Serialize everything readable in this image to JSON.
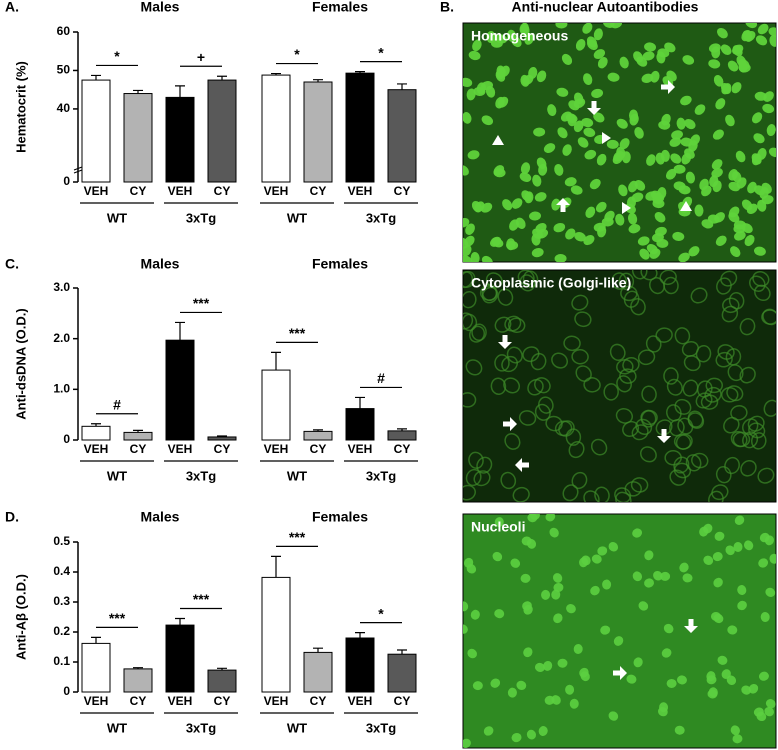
{
  "chart_data": [
    {
      "type": "bar",
      "panel_label": "A.",
      "title": "Males",
      "ylabel": "Hematocrit (%)",
      "y_axis": true,
      "ylim": [
        0,
        60
      ],
      "ybreak": [
        0,
        21
      ],
      "yticks": [
        0,
        40,
        50,
        60
      ],
      "categories": [
        "VEH",
        "CY",
        "VEH",
        "CY"
      ],
      "colors": [
        "#ffffff",
        "#b3b3b3",
        "#000000",
        "#595959"
      ],
      "values": [
        47.5,
        44,
        43,
        47.5
      ],
      "errors": [
        1.2,
        0.8,
        3,
        1
      ],
      "groups": [
        {
          "name": "WT",
          "significance": "*"
        },
        {
          "name": "3xTg",
          "significance": "+"
        }
      ]
    },
    {
      "type": "bar",
      "title": "Females",
      "y_axis": false,
      "ylim": [
        0,
        60
      ],
      "ybreak": [
        0,
        21
      ],
      "categories": [
        "VEH",
        "CY",
        "VEH",
        "CY"
      ],
      "colors": [
        "#ffffff",
        "#b3b3b3",
        "#000000",
        "#595959"
      ],
      "values": [
        48.8,
        47,
        49.3,
        45
      ],
      "errors": [
        0.4,
        0.6,
        0.4,
        1.5
      ],
      "groups": [
        {
          "name": "WT",
          "significance": "*"
        },
        {
          "name": "3xTg",
          "significance": "*"
        }
      ]
    },
    {
      "type": "bar",
      "panel_label": "C.",
      "title": "Males",
      "ylabel": "Anti-dsDNA (O.D.)",
      "y_axis": true,
      "ylim": [
        0,
        3
      ],
      "yticks": [
        0,
        {
          "value": 1,
          "label": "1.0"
        },
        {
          "value": 2,
          "label": "2.0"
        },
        {
          "value": 3,
          "label": "3.0"
        }
      ],
      "categories": [
        "VEH",
        "CY",
        "VEH",
        "CY"
      ],
      "colors": [
        "#ffffff",
        "#b3b3b3",
        "#000000",
        "#595959"
      ],
      "values": [
        0.27,
        0.15,
        1.97,
        0.06
      ],
      "errors": [
        0.05,
        0.04,
        0.35,
        0.02
      ],
      "groups": [
        {
          "name": "WT",
          "significance": "#"
        },
        {
          "name": "3xTg",
          "significance": "***"
        }
      ]
    },
    {
      "type": "bar",
      "title": "Females",
      "y_axis": false,
      "ylim": [
        0,
        3
      ],
      "categories": [
        "VEH",
        "CY",
        "VEH",
        "CY"
      ],
      "colors": [
        "#ffffff",
        "#b3b3b3",
        "#000000",
        "#595959"
      ],
      "values": [
        1.38,
        0.17,
        0.62,
        0.18
      ],
      "errors": [
        0.35,
        0.03,
        0.22,
        0.04
      ],
      "groups": [
        {
          "name": "WT",
          "significance": "***"
        },
        {
          "name": "3xTg",
          "significance": "#"
        }
      ]
    },
    {
      "type": "bar",
      "panel_label": "D.",
      "title": "Males",
      "ylabel": "Anti-Aβ (O.D.)",
      "y_axis": true,
      "ylim": [
        0,
        0.5
      ],
      "yticks": [
        0,
        0.1,
        0.2,
        0.3,
        0.4,
        0.5
      ],
      "categories": [
        "VEH",
        "CY",
        "VEH",
        "CY"
      ],
      "colors": [
        "#ffffff",
        "#b3b3b3",
        "#000000",
        "#595959"
      ],
      "values": [
        0.162,
        0.077,
        0.223,
        0.073
      ],
      "errors": [
        0.02,
        0.004,
        0.022,
        0.006
      ],
      "groups": [
        {
          "name": "WT",
          "significance": "***"
        },
        {
          "name": "3xTg",
          "significance": "***"
        }
      ]
    },
    {
      "type": "bar",
      "title": "Females",
      "y_axis": false,
      "ylim": [
        0,
        0.5
      ],
      "categories": [
        "VEH",
        "CY",
        "VEH",
        "CY"
      ],
      "colors": [
        "#ffffff",
        "#b3b3b3",
        "#000000",
        "#595959"
      ],
      "values": [
        0.382,
        0.132,
        0.18,
        0.126
      ],
      "errors": [
        0.07,
        0.014,
        0.018,
        0.014
      ],
      "groups": [
        {
          "name": "WT",
          "significance": "***"
        },
        {
          "name": "3xTg",
          "significance": "*"
        }
      ]
    }
  ],
  "panel_b": {
    "label": "B.",
    "title": "Anti-nuclear Autoantibodies",
    "images": [
      {
        "label": "Homogeneous"
      },
      {
        "label": "Cytoplasmic (Golgi-like)"
      },
      {
        "label": "Nucleoli"
      }
    ]
  }
}
